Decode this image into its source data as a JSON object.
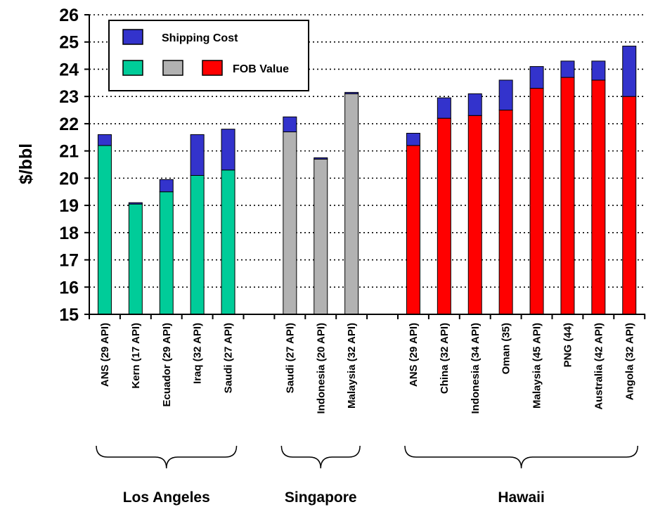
{
  "chart_data": {
    "type": "bar",
    "stacked": true,
    "title": "",
    "xlabel": "",
    "ylabel": "$/bbl",
    "ylim": [
      15,
      26
    ],
    "yticks": [
      15,
      16,
      17,
      18,
      19,
      20,
      21,
      22,
      23,
      24,
      25,
      26
    ],
    "grid": "horizontal dotted",
    "legend": {
      "placement": "top-left",
      "shipping_label": "Shipping Cost",
      "fob_label": "FOB Value"
    },
    "colors": {
      "shipping": "#3333CC",
      "fob_los_angeles": "#00CC99",
      "fob_singapore": "#B2B2B2",
      "fob_hawaii": "#FF0000"
    },
    "groups": [
      {
        "name": "Los Angeles",
        "color_key": "fob_los_angeles",
        "categories": [
          "ANS (29 API)",
          "Kern (17 API)",
          "Ecuador (29 API)",
          "Iraq (32 API)",
          "Saudi (27 API)"
        ],
        "fob_value": [
          21.2,
          19.05,
          19.5,
          20.1,
          20.3
        ],
        "shipping_cost": [
          0.4,
          0.05,
          0.45,
          1.5,
          1.5
        ]
      },
      {
        "name": "Singapore",
        "color_key": "fob_singapore",
        "categories": [
          "Saudi (27 API)",
          "Indonesia (20 API)",
          "Malaysia (32 API)"
        ],
        "fob_value": [
          21.7,
          20.7,
          23.1
        ],
        "shipping_cost": [
          0.55,
          0.05,
          0.05
        ]
      },
      {
        "name": "Hawaii",
        "color_key": "fob_hawaii",
        "categories": [
          "ANS (29 API)",
          "China (32 API)",
          "Indonesia (34 API)",
          "Oman (35)",
          "Malaysia (45 API)",
          "PNG (44)",
          "Australia (42 API)",
          "Angola (32 API)"
        ],
        "fob_value": [
          21.2,
          22.2,
          22.3,
          22.5,
          23.3,
          23.7,
          23.6,
          23.0
        ],
        "shipping_cost": [
          0.45,
          0.75,
          0.8,
          1.1,
          0.8,
          0.6,
          0.7,
          1.85
        ]
      }
    ]
  }
}
